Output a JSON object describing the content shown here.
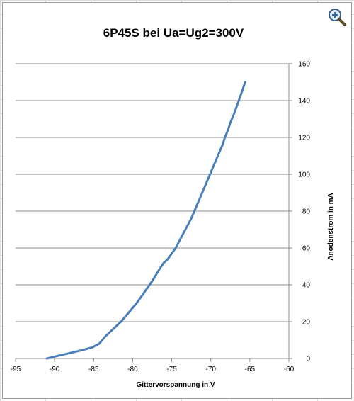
{
  "chart_data": {
    "type": "line",
    "title": "6P45S bei Ua=Ug2=300V",
    "xlabel": "Gittervorspannung  in V",
    "ylabel": "Anodenstrom in  mA",
    "xlim": [
      -95,
      -60
    ],
    "ylim": [
      0,
      160
    ],
    "x_ticks": [
      -95,
      -90,
      -85,
      -80,
      -75,
      -70,
      -65,
      -60
    ],
    "y_ticks": [
      0,
      20,
      40,
      60,
      80,
      100,
      120,
      140,
      160
    ],
    "y_axis_side": "right",
    "grid": "horizontal",
    "legend": "none",
    "series": [
      {
        "color": "#4a7ebb",
        "x": [
          -91.0,
          -89.5,
          -88.0,
          -86.5,
          -85.2,
          -84.3,
          -84.0,
          -83.5,
          -82.5,
          -81.5,
          -80.5,
          -79.5,
          -78.5,
          -77.5,
          -76.5,
          -76.0,
          -75.5,
          -75.0,
          -74.5,
          -74.0,
          -73.5,
          -73.0,
          -72.5,
          -72.0,
          -71.5,
          -71.0,
          -70.5,
          -70.0,
          -69.5,
          -69.0,
          -68.5,
          -68.2,
          -67.8,
          -67.5,
          -67.0,
          -66.5,
          -66.0,
          -65.6
        ],
        "y": [
          0,
          1.5,
          3,
          4.5,
          6,
          8,
          9.5,
          12,
          16,
          20,
          25,
          30,
          36,
          42,
          49,
          52,
          54,
          57,
          60,
          64,
          68,
          72,
          76,
          81,
          86,
          91,
          96,
          101,
          106,
          111,
          116,
          120,
          124,
          128,
          133,
          139,
          145,
          150
        ]
      }
    ]
  },
  "icons": {
    "zoom": "zoom-in-magnifier-icon"
  }
}
